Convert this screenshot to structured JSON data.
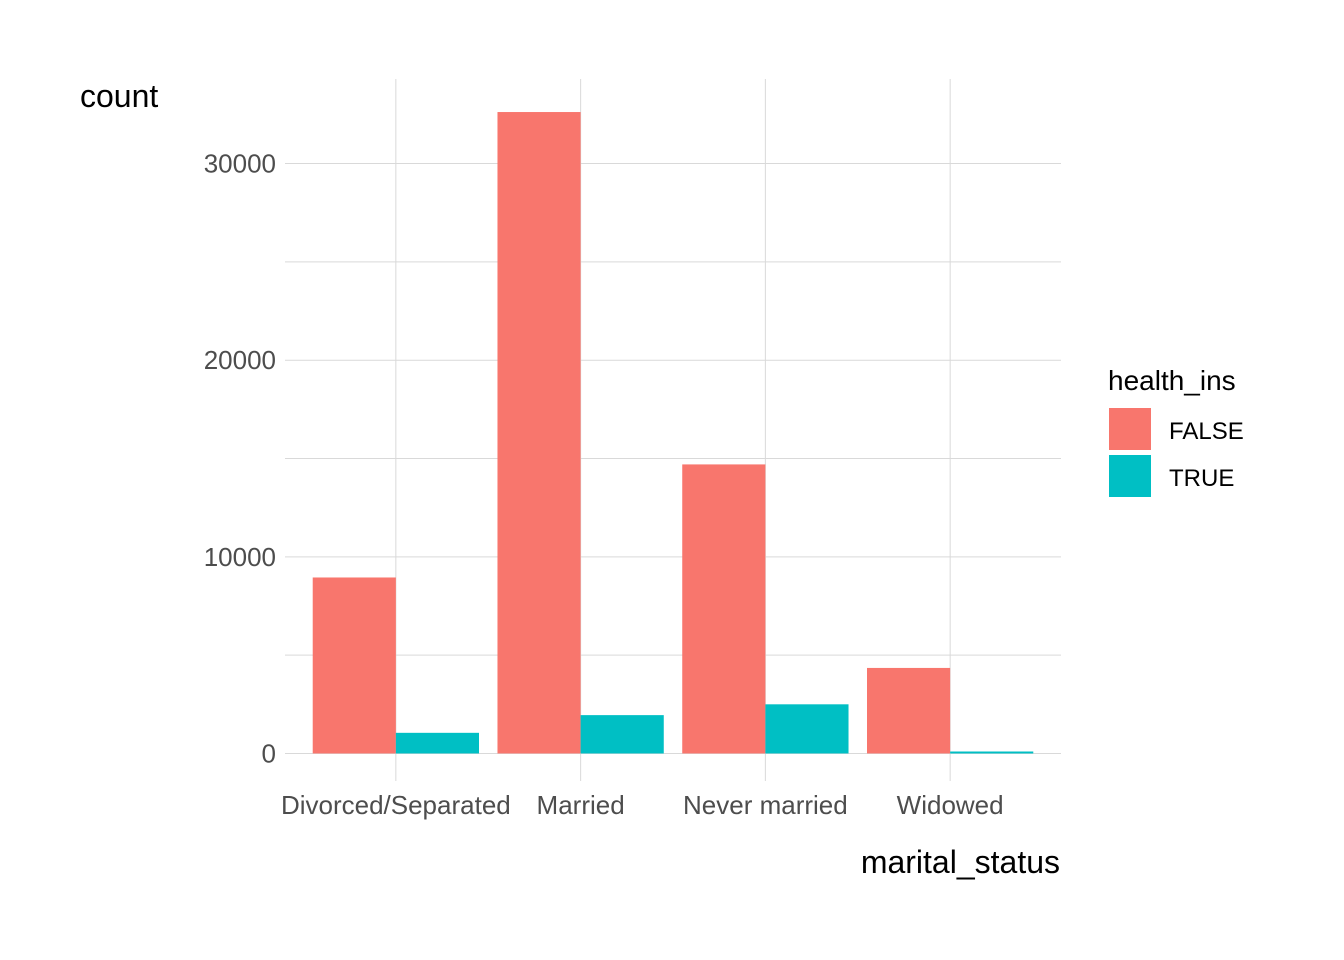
{
  "chart_data": {
    "type": "bar",
    "categories": [
      "Divorced/Separated",
      "Married",
      "Never married",
      "Widowed"
    ],
    "series": [
      {
        "name": "FALSE",
        "color": "#F8766D",
        "values": [
          8950,
          32620,
          14700,
          4350
        ]
      },
      {
        "name": "TRUE",
        "color": "#00BFC4",
        "values": [
          1050,
          1950,
          2500,
          100
        ]
      }
    ],
    "xlabel": "marital_status",
    "ylabel": "count",
    "legend_title": "health_ins",
    "y_ticks": [
      "0",
      "10000",
      "20000",
      "30000"
    ],
    "ylim": [
      -1400,
      34300
    ],
    "grid": true,
    "legend_position": "right"
  }
}
